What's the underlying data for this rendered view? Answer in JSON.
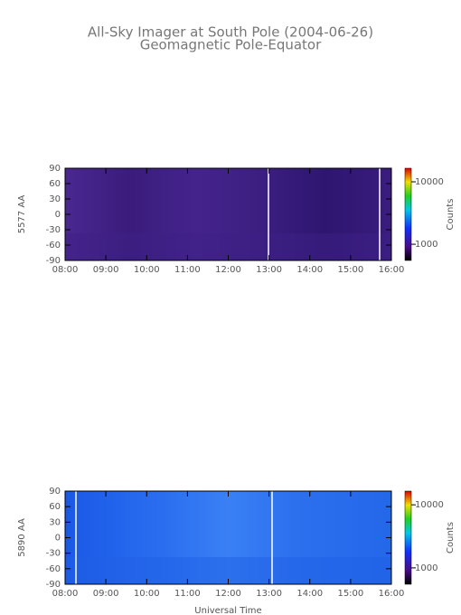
{
  "title": "All-Sky Imager at South Pole (2004-06-26)",
  "subtitle": "Geomagnetic Pole-Equator",
  "chart_data": [
    {
      "type": "heatmap",
      "ylabel": "5577 AA",
      "ylim": [
        -90,
        90
      ],
      "yticks": [
        -90,
        -60,
        -30,
        0,
        30,
        60,
        90
      ],
      "xlim": [
        8,
        16
      ],
      "xticks": [
        {
          "value": 8,
          "label": "08:00"
        },
        {
          "value": 9,
          "label": "09:00"
        },
        {
          "value": 10,
          "label": "10:00"
        },
        {
          "value": 11,
          "label": "11:00"
        },
        {
          "value": 12,
          "label": "12:00"
        },
        {
          "value": 13,
          "label": "13:00"
        },
        {
          "value": 14,
          "label": "14:00"
        },
        {
          "value": 15,
          "label": "15:00"
        },
        {
          "value": 16,
          "label": "16:00"
        }
      ],
      "colorbar_label": "Counts",
      "colorbar_scale": "log",
      "clim": [
        550,
        16500
      ],
      "cticks": [
        1000,
        10000
      ],
      "color": "#3d1f86"
    },
    {
      "type": "heatmap",
      "ylabel": "5890 AA",
      "xlabel": "Universal Time",
      "ylim": [
        -90,
        90
      ],
      "yticks": [
        -90,
        -60,
        -30,
        0,
        30,
        60,
        90
      ],
      "xlim": [
        8,
        16
      ],
      "xticks": [
        {
          "value": 8,
          "label": "08:00"
        },
        {
          "value": 9,
          "label": "09:00"
        },
        {
          "value": 10,
          "label": "10:00"
        },
        {
          "value": 11,
          "label": "11:00"
        },
        {
          "value": 12,
          "label": "12:00"
        },
        {
          "value": 13,
          "label": "13:00"
        },
        {
          "value": 14,
          "label": "14:00"
        },
        {
          "value": 15,
          "label": "15:00"
        },
        {
          "value": 16,
          "label": "16:00"
        }
      ],
      "colorbar_label": "Counts",
      "colorbar_scale": "log",
      "clim": [
        550,
        16500
      ],
      "cticks": [
        1000,
        10000
      ],
      "color": "#1f5fe6"
    }
  ]
}
